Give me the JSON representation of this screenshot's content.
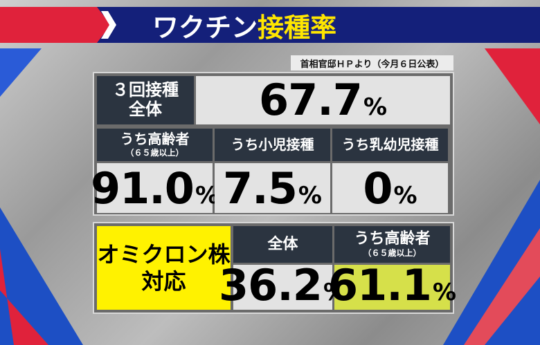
{
  "header": {
    "title_part1": "ワクチン",
    "title_part2": "接種率"
  },
  "source": "首相官邸ＨＰより（今月６日公表）",
  "booster": {
    "label_lines": [
      "３回接種",
      "全体"
    ],
    "value": "67.7",
    "unit": "%"
  },
  "breakdown": [
    {
      "label": "うち高齢者",
      "sublabel": "（６５歳以上）",
      "value": "91.0",
      "unit": "%"
    },
    {
      "label": "うち小児接種",
      "value": "7.5",
      "unit": "%"
    },
    {
      "label": "うち乳幼児接種",
      "value": "0",
      "unit": "%"
    }
  ],
  "omicron": {
    "label_lines": [
      "オミクロン株",
      "対応"
    ],
    "cells": [
      {
        "label": "全体",
        "value": "36.2",
        "unit": "%"
      },
      {
        "label": "うち高齢者",
        "sublabel": "（６５歳以上）",
        "value": "61.1",
        "unit": "%"
      }
    ]
  }
}
